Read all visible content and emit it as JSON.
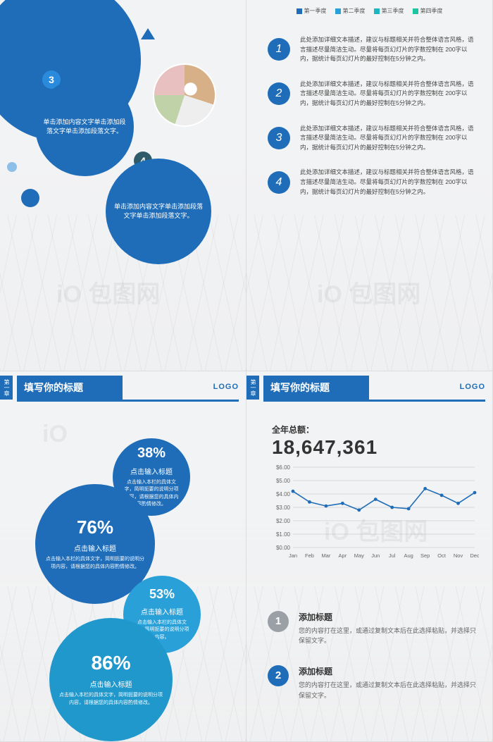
{
  "header": {
    "chapter": "第一章",
    "title": "填写你的标题",
    "logo": "LOGO"
  },
  "colors": {
    "primary": "#1f6db8",
    "accent": "#2aa0d8",
    "gray": "#9aa0a6"
  },
  "slide1": {
    "bubble3": {
      "num": "3",
      "text": "单击添加内容文字单击添加段落文字单击添加段落文字。"
    },
    "bubble4": {
      "num": "4",
      "text": "单击添加内容文字单击添加段落文字单击添加段落文字。"
    }
  },
  "slide2": {
    "legend": [
      {
        "label": "第一季度",
        "color": "#1f6db8"
      },
      {
        "label": "第二季度",
        "color": "#2aa0d8"
      },
      {
        "label": "第三季度",
        "color": "#1ab6c4"
      },
      {
        "label": "第四季度",
        "color": "#1cc4a0"
      }
    ],
    "items": [
      {
        "num": "1",
        "text": "此处添加详细文本描述，建议与标题相关并符合整体语言风格，语言描述尽量简洁生动。尽量将每页幻灯片的字数控制在 200字以内，据统计每页幻灯片的最好控制在5分钟之内。"
      },
      {
        "num": "2",
        "text": "此处添加详细文本描述，建议与标题相关并符合整体语言风格，语言描述尽量简洁生动。尽量将每页幻灯片的字数控制在 200字以内，据统计每页幻灯片的最好控制在5分钟之内。"
      },
      {
        "num": "3",
        "text": "此处添加详细文本描述，建议与标题相关并符合整体语言风格，语言描述尽量简洁生动。尽量将每页幻灯片的字数控制在 200字以内，据统计每页幻灯片的最好控制在5分钟之内。"
      },
      {
        "num": "4",
        "text": "此处添加详细文本描述，建议与标题相关并符合整体语言风格，语言描述尽量简洁生动。尽量将每页幻灯片的字数控制在 200字以内，据统计每页幻灯片的最好控制在5分钟之内。"
      }
    ]
  },
  "slide3": {
    "bubbles": [
      {
        "pct": "38%",
        "title": "点击输入标题",
        "desc": "点击输入本栏的具体文字，简明扼要的说明分项内容，请根据您的具体内容酌情修改。"
      },
      {
        "pct": "76%",
        "title": "点击输入标题",
        "desc": "点击输入本栏的具体文字，简明扼要的说明分项内容，请根据您的具体内容酌情修改。"
      },
      {
        "pct": "53%",
        "title": "点击输入标题",
        "desc": "点击输入本栏的具体文字，简明扼要的说明分项内容。"
      },
      {
        "pct": "86%",
        "title": "点击输入标题",
        "desc": "点击输入本栏的具体文字，简明扼要的说明分项内容，请根据您的具体内容酌情修改。"
      }
    ]
  },
  "slide4": {
    "total_label": "全年总额：",
    "total_value": "18,647,361",
    "chart": {
      "type": "line",
      "line_color": "#1f6db8",
      "marker_color": "#1f6db8",
      "grid_color": "#d8d8dc",
      "ylim": [
        0,
        6
      ],
      "ytick_step": 1,
      "yprefix": "$",
      "ysuffix": ".00",
      "months": [
        "Jan",
        "Feb",
        "Mar",
        "Apr",
        "May",
        "Jun",
        "Jul",
        "Aug",
        "Sep",
        "Oct",
        "Nov",
        "Dec"
      ],
      "values": [
        4.2,
        3.4,
        3.1,
        3.3,
        2.8,
        3.6,
        3.0,
        2.9,
        4.4,
        3.9,
        3.3,
        4.1
      ]
    },
    "infos": [
      {
        "num": "1",
        "title": "添加标题",
        "desc": "您的内容打在这里，或通过复制文本后在此选择粘贴，并选择只保留文字。"
      },
      {
        "num": "2",
        "title": "添加标题",
        "desc": "您的内容打在这里，或通过复制文本后在此选择粘贴，并选择只保留文字。"
      }
    ]
  }
}
